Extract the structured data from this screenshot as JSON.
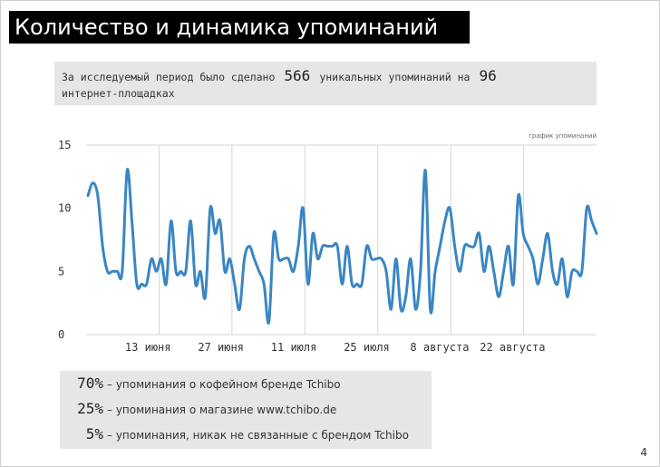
{
  "slide": {
    "title": "Количество и динамика упоминаний",
    "page_number": "4"
  },
  "summary": {
    "text_before": "За исследуемый период было сделано",
    "mentions_count": "566",
    "text_middle": "уникальных упоминаний  на",
    "platforms_count": "96",
    "text_line2": "интернет-площадках"
  },
  "legend": [
    {
      "percent": "70%",
      "text": "– упоминания о кофейном бренде Tchibo"
    },
    {
      "percent": "25%",
      "text": "– упоминания о магазине www.tchibo.de"
    },
    {
      "percent": "5%",
      "text": "– упоминания, никак не связанные с брендом Tchibo"
    }
  ],
  "colors": {
    "line": "#3a86c4",
    "grid": "#d6d6d6",
    "title_bg": "#000000",
    "box_bg": "#e6e6e6"
  },
  "chart_data": {
    "type": "line",
    "title": "график упоминаний",
    "xlabel": "",
    "ylabel": "",
    "ylim": [
      0,
      15
    ],
    "yticks": [
      "0",
      "5",
      "10",
      "15"
    ],
    "grid": "vertical",
    "xtick_labels": [
      "13 июня",
      "27 июня",
      "11 июля",
      "25 июля",
      "8 августа",
      "22 августа"
    ],
    "series": [
      {
        "values": [
          11,
          12,
          11,
          7,
          5,
          5,
          5,
          5,
          13,
          9,
          4,
          4,
          4,
          6,
          5,
          6,
          4,
          9,
          5,
          5,
          5,
          9,
          4,
          5,
          3,
          10,
          8,
          9,
          5,
          6,
          4,
          2,
          6,
          7,
          6,
          5,
          4,
          1,
          8,
          6,
          6,
          6,
          5,
          7,
          10,
          4,
          8,
          6,
          7,
          7,
          7,
          7,
          4,
          7,
          4,
          4,
          4,
          7,
          6,
          6,
          6,
          5,
          2,
          6,
          2,
          3,
          6,
          2,
          5,
          13,
          2,
          5,
          7,
          9,
          10,
          7,
          5,
          7,
          7,
          7,
          8,
          5,
          7,
          5,
          3,
          5,
          7,
          4,
          11,
          8,
          7,
          6,
          4,
          6,
          8,
          5,
          4,
          6,
          3,
          5,
          5,
          5,
          10,
          9,
          8
        ]
      }
    ]
  }
}
